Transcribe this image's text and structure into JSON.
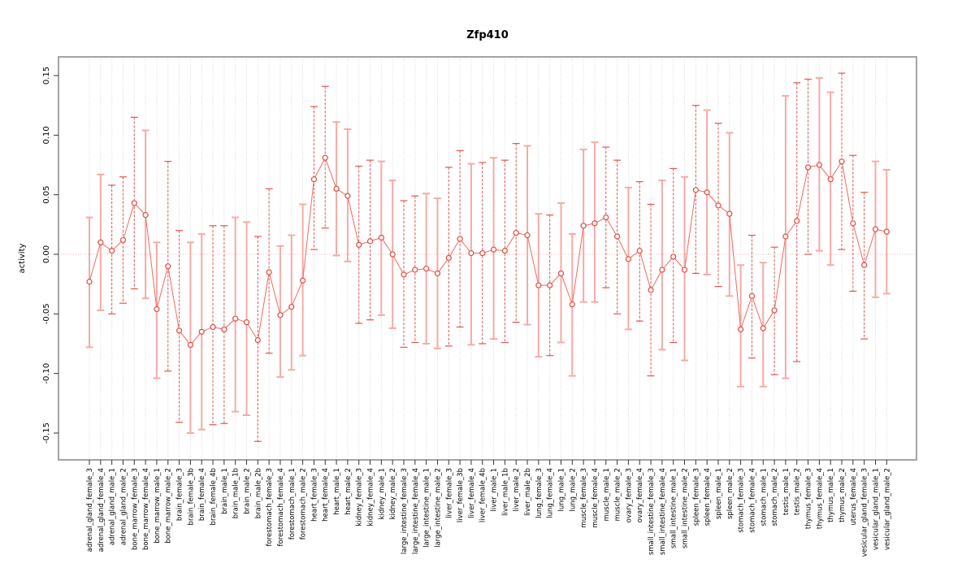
{
  "chart_data": {
    "type": "scatter",
    "title": "Zfp410",
    "xlabel": "",
    "ylabel": "activity",
    "ylim": [
      -0.1725,
      0.1657
    ],
    "yticks": [
      0.15,
      0.1,
      0.05,
      0.0,
      -0.05,
      -0.1,
      -0.15
    ],
    "ytick_labels": [
      "0.15",
      "0.10",
      "0.05",
      "0.00",
      "-0.05",
      "-0.10",
      "-0.15"
    ],
    "grid": "vertical-dotted-per-sample",
    "zero_reference_line": 0.0,
    "legend": "none",
    "colors": {
      "point": "#e8483f",
      "series_line": "#ef6a60",
      "error_bar_solid": "#f6aaa4",
      "error_bar_dashed": "#e2574f",
      "gridline": "#d9d9d9",
      "zero_line": "#e7bdb9",
      "frame": "#9a9a9a",
      "tick": "#333333",
      "text": "#000000"
    },
    "samples": [
      {
        "label": "adrenal_gland_female_3",
        "value": -0.023,
        "lo": -0.078,
        "hi": 0.031,
        "style": "solid"
      },
      {
        "label": "adrenal_gland_female_4",
        "value": 0.01,
        "lo": -0.047,
        "hi": 0.067,
        "style": "solid"
      },
      {
        "label": "adrenal_gland_male_1",
        "value": 0.003,
        "lo": -0.05,
        "hi": 0.058,
        "style": "dashed"
      },
      {
        "label": "adrenal_gland_male_2",
        "value": 0.012,
        "lo": -0.041,
        "hi": 0.065,
        "style": "dashed"
      },
      {
        "label": "bone_marrow_female_3",
        "value": 0.043,
        "lo": -0.029,
        "hi": 0.115,
        "style": "dashed"
      },
      {
        "label": "bone_marrow_female_4",
        "value": 0.033,
        "lo": -0.037,
        "hi": 0.104,
        "style": "solid"
      },
      {
        "label": "bone_marrow_male_1",
        "value": -0.046,
        "lo": -0.104,
        "hi": 0.01,
        "style": "solid"
      },
      {
        "label": "bone_marrow_male_2",
        "value": -0.01,
        "lo": -0.098,
        "hi": 0.078,
        "style": "dashed"
      },
      {
        "label": "brain_female_3",
        "value": -0.064,
        "lo": -0.141,
        "hi": 0.02,
        "style": "dashed"
      },
      {
        "label": "brain_female_3b",
        "value": -0.076,
        "lo": -0.15,
        "hi": 0.01,
        "style": "solid"
      },
      {
        "label": "brain_female_4",
        "value": -0.065,
        "lo": -0.147,
        "hi": 0.017,
        "style": "solid"
      },
      {
        "label": "brain_female_4b",
        "value": -0.061,
        "lo": -0.143,
        "hi": 0.024,
        "style": "dashed"
      },
      {
        "label": "brain_male_1",
        "value": -0.063,
        "lo": -0.142,
        "hi": 0.024,
        "style": "dashed"
      },
      {
        "label": "brain_male_1b",
        "value": -0.054,
        "lo": -0.132,
        "hi": 0.031,
        "style": "solid"
      },
      {
        "label": "brain_male_2",
        "value": -0.057,
        "lo": -0.135,
        "hi": 0.027,
        "style": "solid"
      },
      {
        "label": "brain_male_2b",
        "value": -0.072,
        "lo": -0.157,
        "hi": 0.015,
        "style": "dashed"
      },
      {
        "label": "forestomach_female_3",
        "value": -0.015,
        "lo": -0.083,
        "hi": 0.055,
        "style": "dashed"
      },
      {
        "label": "forestomach_female_4",
        "value": -0.051,
        "lo": -0.103,
        "hi": 0.007,
        "style": "solid"
      },
      {
        "label": "forestomach_male_1",
        "value": -0.044,
        "lo": -0.097,
        "hi": 0.016,
        "style": "solid"
      },
      {
        "label": "forestomach_male_2",
        "value": -0.022,
        "lo": -0.085,
        "hi": 0.042,
        "style": "solid"
      },
      {
        "label": "heart_female_3",
        "value": 0.063,
        "lo": 0.004,
        "hi": 0.124,
        "style": "dashed"
      },
      {
        "label": "heart_female_4",
        "value": 0.081,
        "lo": 0.022,
        "hi": 0.141,
        "style": "dashed"
      },
      {
        "label": "heart_male_1",
        "value": 0.055,
        "lo": -0.001,
        "hi": 0.111,
        "style": "solid"
      },
      {
        "label": "heart_male_2",
        "value": 0.049,
        "lo": -0.006,
        "hi": 0.105,
        "style": "solid"
      },
      {
        "label": "kidney_female_3",
        "value": 0.008,
        "lo": -0.058,
        "hi": 0.074,
        "style": "dashed"
      },
      {
        "label": "kidney_female_4",
        "value": 0.011,
        "lo": -0.055,
        "hi": 0.079,
        "style": "dashed"
      },
      {
        "label": "kidney_male_1",
        "value": 0.014,
        "lo": -0.051,
        "hi": 0.078,
        "style": "solid"
      },
      {
        "label": "kidney_male_2",
        "value": 0.0,
        "lo": -0.062,
        "hi": 0.062,
        "style": "solid"
      },
      {
        "label": "large_intestine_female_3",
        "value": -0.017,
        "lo": -0.078,
        "hi": 0.045,
        "style": "dashed"
      },
      {
        "label": "large_intestine_female_4",
        "value": -0.013,
        "lo": -0.074,
        "hi": 0.049,
        "style": "dashed"
      },
      {
        "label": "large_intestine_male_1",
        "value": -0.012,
        "lo": -0.075,
        "hi": 0.051,
        "style": "solid"
      },
      {
        "label": "large_intestine_male_2",
        "value": -0.016,
        "lo": -0.079,
        "hi": 0.047,
        "style": "solid"
      },
      {
        "label": "liver_female_3",
        "value": -0.003,
        "lo": -0.077,
        "hi": 0.073,
        "style": "dashed"
      },
      {
        "label": "liver_female_3b",
        "value": 0.013,
        "lo": -0.061,
        "hi": 0.087,
        "style": "dashed"
      },
      {
        "label": "liver_female_4",
        "value": 0.001,
        "lo": -0.076,
        "hi": 0.076,
        "style": "solid"
      },
      {
        "label": "liver_female_4b",
        "value": 0.001,
        "lo": -0.075,
        "hi": 0.077,
        "style": "dashed"
      },
      {
        "label": "liver_male_1",
        "value": 0.004,
        "lo": -0.071,
        "hi": 0.081,
        "style": "solid"
      },
      {
        "label": "liver_male_1b",
        "value": 0.003,
        "lo": -0.074,
        "hi": 0.079,
        "style": "dashed"
      },
      {
        "label": "liver_male_2",
        "value": 0.018,
        "lo": -0.057,
        "hi": 0.093,
        "style": "dashed"
      },
      {
        "label": "liver_male_2b",
        "value": 0.016,
        "lo": -0.059,
        "hi": 0.091,
        "style": "solid"
      },
      {
        "label": "lung_female_3",
        "value": -0.026,
        "lo": -0.086,
        "hi": 0.034,
        "style": "solid"
      },
      {
        "label": "lung_female_4",
        "value": -0.026,
        "lo": -0.085,
        "hi": 0.033,
        "style": "dashed"
      },
      {
        "label": "lung_male_1",
        "value": -0.016,
        "lo": -0.074,
        "hi": 0.043,
        "style": "solid"
      },
      {
        "label": "lung_male_2",
        "value": -0.042,
        "lo": -0.102,
        "hi": 0.017,
        "style": "solid"
      },
      {
        "label": "muscle_female_3",
        "value": 0.024,
        "lo": -0.04,
        "hi": 0.088,
        "style": "solid"
      },
      {
        "label": "muscle_female_4",
        "value": 0.026,
        "lo": -0.04,
        "hi": 0.094,
        "style": "solid"
      },
      {
        "label": "muscle_male_1",
        "value": 0.031,
        "lo": -0.028,
        "hi": 0.09,
        "style": "dashed"
      },
      {
        "label": "muscle_male_2",
        "value": 0.015,
        "lo": -0.05,
        "hi": 0.079,
        "style": "dashed"
      },
      {
        "label": "ovary_female_3",
        "value": -0.004,
        "lo": -0.063,
        "hi": 0.056,
        "style": "solid"
      },
      {
        "label": "ovary_female_4",
        "value": 0.003,
        "lo": -0.056,
        "hi": 0.061,
        "style": "dashed"
      },
      {
        "label": "small_intestine_female_3",
        "value": -0.03,
        "lo": -0.102,
        "hi": 0.042,
        "style": "dashed"
      },
      {
        "label": "small_intestine_female_4",
        "value": -0.013,
        "lo": -0.08,
        "hi": 0.062,
        "style": "solid"
      },
      {
        "label": "small_intestine_male_1",
        "value": -0.002,
        "lo": -0.074,
        "hi": 0.072,
        "style": "dashed"
      },
      {
        "label": "small_intestine_male_2",
        "value": -0.013,
        "lo": -0.089,
        "hi": 0.065,
        "style": "solid"
      },
      {
        "label": "spleen_female_3",
        "value": 0.054,
        "lo": -0.016,
        "hi": 0.125,
        "style": "dashed"
      },
      {
        "label": "spleen_female_4",
        "value": 0.052,
        "lo": -0.017,
        "hi": 0.121,
        "style": "solid"
      },
      {
        "label": "spleen_male_1",
        "value": 0.041,
        "lo": -0.027,
        "hi": 0.11,
        "style": "dashed"
      },
      {
        "label": "spleen_male_2",
        "value": 0.034,
        "lo": -0.035,
        "hi": 0.102,
        "style": "solid"
      },
      {
        "label": "stomach_female_3",
        "value": -0.063,
        "lo": -0.111,
        "hi": -0.009,
        "style": "solid"
      },
      {
        "label": "stomach_female_4",
        "value": -0.035,
        "lo": -0.087,
        "hi": 0.016,
        "style": "dashed"
      },
      {
        "label": "stomach_male_1",
        "value": -0.062,
        "lo": -0.111,
        "hi": -0.007,
        "style": "solid"
      },
      {
        "label": "stomach_male_2",
        "value": -0.047,
        "lo": -0.101,
        "hi": 0.006,
        "style": "dashed"
      },
      {
        "label": "testis_male_1",
        "value": 0.015,
        "lo": -0.104,
        "hi": 0.133,
        "style": "solid"
      },
      {
        "label": "testis_male_2",
        "value": 0.028,
        "lo": -0.09,
        "hi": 0.144,
        "style": "dashed"
      },
      {
        "label": "thymus_female_3",
        "value": 0.073,
        "lo": 0.0,
        "hi": 0.147,
        "style": "dashed"
      },
      {
        "label": "thymus_female_4",
        "value": 0.075,
        "lo": 0.003,
        "hi": 0.148,
        "style": "solid"
      },
      {
        "label": "thymus_male_1",
        "value": 0.063,
        "lo": -0.009,
        "hi": 0.136,
        "style": "solid"
      },
      {
        "label": "thymus_male_2",
        "value": 0.078,
        "lo": 0.004,
        "hi": 0.152,
        "style": "dashed"
      },
      {
        "label": "uterus_female_4",
        "value": 0.026,
        "lo": -0.031,
        "hi": 0.083,
        "style": "dashed"
      },
      {
        "label": "vesicular_gland_female_3",
        "value": -0.009,
        "lo": -0.071,
        "hi": 0.052,
        "style": "dashed"
      },
      {
        "label": "vesicular_gland_male_1",
        "value": 0.021,
        "lo": -0.036,
        "hi": 0.078,
        "style": "solid"
      },
      {
        "label": "vesicular_gland_male_2",
        "value": 0.019,
        "lo": -0.033,
        "hi": 0.071,
        "style": "solid"
      }
    ]
  }
}
